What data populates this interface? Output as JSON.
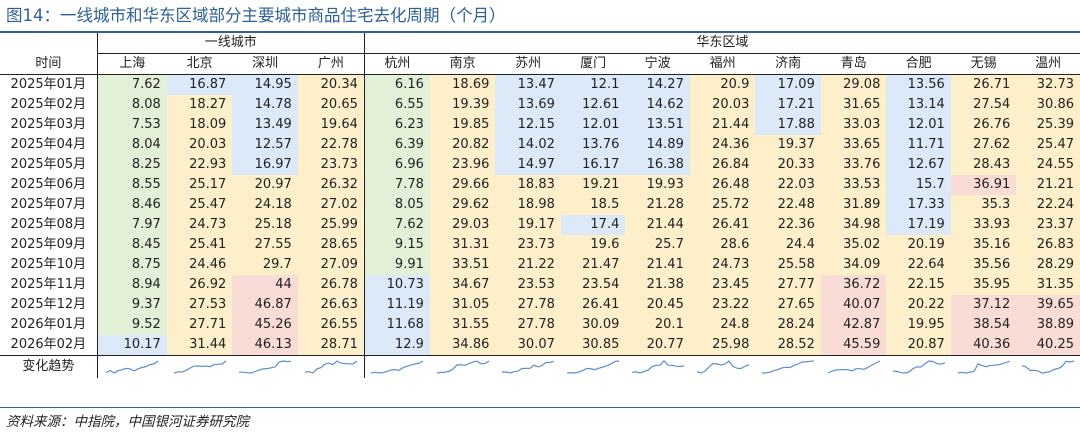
{
  "title": "图14：一线城市和华东区域部分主要城市商品住宅去化周期（个月）",
  "source": "资料来源：中指院，中国银河证券研究院",
  "row_header": "时间",
  "trend_label": "变化趋势",
  "groups": [
    "一线城市",
    "华东区域"
  ],
  "colors": {
    "blue": "#dbe9f8",
    "yellow": "#fdefc9",
    "green": "#e3f0d8",
    "red": "#f9dcd6",
    "spark": "#5b8fd1",
    "title": "#2e5f9a"
  },
  "cities": [
    "上海",
    "北京",
    "深圳",
    "广州",
    "杭州",
    "南京",
    "苏州",
    "厦门",
    "宁波",
    "福州",
    "济南",
    "青岛",
    "合肥",
    "无锡",
    "温州"
  ],
  "rows": [
    {
      "date": "2025年01月",
      "values": [
        "7.62",
        "16.87",
        "14.95",
        "20.34",
        "6.16",
        "18.69",
        "13.47",
        "12.1",
        "14.27",
        "20.9",
        "17.09",
        "29.08",
        "13.56",
        "26.71",
        "32.73"
      ],
      "colors": [
        "g",
        "b",
        "b",
        "y",
        "g",
        "y",
        "b",
        "b",
        "b",
        "y",
        "b",
        "y",
        "b",
        "y",
        "y"
      ]
    },
    {
      "date": "2025年02月",
      "values": [
        "8.08",
        "18.27",
        "14.78",
        "20.65",
        "6.55",
        "19.39",
        "13.69",
        "12.61",
        "14.62",
        "20.03",
        "17.21",
        "31.65",
        "13.14",
        "27.54",
        "30.86"
      ],
      "colors": [
        "g",
        "y",
        "b",
        "y",
        "g",
        "y",
        "b",
        "b",
        "b",
        "y",
        "b",
        "y",
        "b",
        "y",
        "y"
      ]
    },
    {
      "date": "2025年03月",
      "values": [
        "7.53",
        "18.09",
        "13.49",
        "19.64",
        "6.23",
        "19.85",
        "12.15",
        "12.01",
        "13.51",
        "21.44",
        "17.88",
        "33.03",
        "12.01",
        "26.76",
        "25.39"
      ],
      "colors": [
        "g",
        "y",
        "b",
        "y",
        "g",
        "y",
        "b",
        "b",
        "b",
        "y",
        "b",
        "y",
        "b",
        "y",
        "y"
      ]
    },
    {
      "date": "2025年04月",
      "values": [
        "8.04",
        "20.03",
        "12.57",
        "22.78",
        "6.39",
        "20.82",
        "14.02",
        "13.76",
        "14.89",
        "24.36",
        "19.37",
        "33.65",
        "11.71",
        "27.62",
        "25.47"
      ],
      "colors": [
        "g",
        "y",
        "b",
        "y",
        "g",
        "y",
        "b",
        "b",
        "b",
        "y",
        "y",
        "y",
        "b",
        "y",
        "y"
      ]
    },
    {
      "date": "2025年05月",
      "values": [
        "8.25",
        "22.93",
        "16.97",
        "23.73",
        "6.96",
        "23.96",
        "14.97",
        "16.17",
        "16.38",
        "26.84",
        "20.33",
        "33.76",
        "12.67",
        "28.43",
        "24.55"
      ],
      "colors": [
        "g",
        "y",
        "b",
        "y",
        "g",
        "y",
        "b",
        "b",
        "b",
        "y",
        "y",
        "y",
        "b",
        "y",
        "y"
      ]
    },
    {
      "date": "2025年06月",
      "values": [
        "8.55",
        "25.17",
        "20.97",
        "26.32",
        "7.78",
        "29.66",
        "18.83",
        "19.21",
        "19.93",
        "26.48",
        "22.03",
        "33.53",
        "15.7",
        "36.91",
        "21.21"
      ],
      "colors": [
        "g",
        "y",
        "y",
        "y",
        "g",
        "y",
        "y",
        "y",
        "y",
        "y",
        "y",
        "y",
        "b",
        "r",
        "y"
      ]
    },
    {
      "date": "2025年07月",
      "values": [
        "8.46",
        "25.47",
        "24.18",
        "27.02",
        "8.05",
        "29.62",
        "18.98",
        "18.5",
        "21.28",
        "25.72",
        "22.48",
        "31.89",
        "17.33",
        "35.3",
        "22.24"
      ],
      "colors": [
        "g",
        "y",
        "y",
        "y",
        "g",
        "y",
        "y",
        "y",
        "y",
        "y",
        "y",
        "y",
        "b",
        "y",
        "y"
      ]
    },
    {
      "date": "2025年08月",
      "values": [
        "7.97",
        "24.73",
        "25.18",
        "25.99",
        "7.62",
        "29.03",
        "19.17",
        "17.4",
        "21.44",
        "26.41",
        "22.36",
        "34.98",
        "17.19",
        "33.93",
        "23.37"
      ],
      "colors": [
        "g",
        "y",
        "y",
        "y",
        "g",
        "y",
        "y",
        "b",
        "y",
        "y",
        "y",
        "y",
        "b",
        "y",
        "y"
      ]
    },
    {
      "date": "2025年09月",
      "values": [
        "8.45",
        "25.41",
        "27.55",
        "28.65",
        "9.15",
        "31.31",
        "23.73",
        "19.6",
        "25.7",
        "28.6",
        "24.4",
        "35.02",
        "20.19",
        "35.16",
        "26.83"
      ],
      "colors": [
        "g",
        "y",
        "y",
        "y",
        "g",
        "y",
        "y",
        "y",
        "y",
        "y",
        "y",
        "y",
        "y",
        "y",
        "y"
      ]
    },
    {
      "date": "2025年10月",
      "values": [
        "8.75",
        "24.46",
        "29.7",
        "27.09",
        "9.91",
        "33.51",
        "21.22",
        "21.47",
        "21.41",
        "24.73",
        "25.58",
        "34.09",
        "22.64",
        "35.56",
        "28.29"
      ],
      "colors": [
        "g",
        "y",
        "y",
        "y",
        "g",
        "y",
        "y",
        "y",
        "y",
        "y",
        "y",
        "y",
        "y",
        "y",
        "y"
      ]
    },
    {
      "date": "2025年11月",
      "values": [
        "8.94",
        "26.92",
        "44",
        "26.78",
        "10.73",
        "34.67",
        "23.53",
        "23.54",
        "21.38",
        "23.45",
        "27.77",
        "36.72",
        "22.15",
        "35.95",
        "31.35"
      ],
      "colors": [
        "g",
        "y",
        "r",
        "y",
        "b",
        "y",
        "y",
        "y",
        "y",
        "y",
        "y",
        "r",
        "y",
        "y",
        "y"
      ]
    },
    {
      "date": "2025年12月",
      "values": [
        "9.37",
        "27.53",
        "46.87",
        "26.63",
        "11.19",
        "31.05",
        "27.78",
        "26.41",
        "20.45",
        "23.22",
        "27.65",
        "40.07",
        "20.22",
        "37.12",
        "39.65"
      ],
      "colors": [
        "g",
        "y",
        "r",
        "y",
        "b",
        "y",
        "y",
        "y",
        "y",
        "y",
        "y",
        "r",
        "y",
        "r",
        "r"
      ]
    },
    {
      "date": "2026年01月",
      "values": [
        "9.52",
        "27.71",
        "45.26",
        "26.55",
        "11.68",
        "31.55",
        "27.78",
        "30.09",
        "20.1",
        "24.8",
        "28.24",
        "42.87",
        "19.95",
        "38.54",
        "38.89"
      ],
      "colors": [
        "g",
        "y",
        "r",
        "y",
        "b",
        "y",
        "y",
        "y",
        "y",
        "y",
        "y",
        "r",
        "y",
        "r",
        "r"
      ]
    },
    {
      "date": "2026年02月",
      "values": [
        "10.17",
        "31.44",
        "46.13",
        "28.71",
        "12.9",
        "34.86",
        "30.07",
        "30.85",
        "20.77",
        "25.98",
        "28.52",
        "45.59",
        "20.87",
        "40.36",
        "40.25"
      ],
      "colors": [
        "b",
        "y",
        "r",
        "y",
        "b",
        "y",
        "y",
        "y",
        "y",
        "y",
        "y",
        "r",
        "y",
        "r",
        "r"
      ]
    }
  ]
}
